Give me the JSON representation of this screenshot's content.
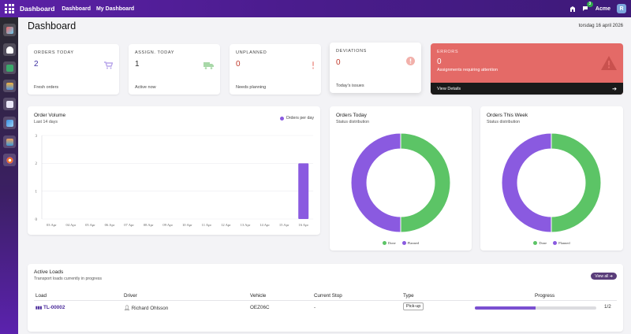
{
  "topbar": {
    "brand": "Dashboard",
    "nav": [
      "Dashboard",
      "My Dashboard"
    ],
    "company": "Acme",
    "chat_badge": "3",
    "avatar_initial": "R"
  },
  "sidebar": {
    "apps": [
      "app-1",
      "app-2",
      "app-3",
      "app-4",
      "app-5",
      "app-6",
      "app-7",
      "app-8"
    ]
  },
  "page": {
    "title": "Dashboard",
    "date": "torsdag 16 april 2026"
  },
  "kpis": [
    {
      "label": "ORDERS TODAY",
      "value": "2",
      "sub": "Fresh orders",
      "icon": "cart-icon",
      "color": "#3b2fa0"
    },
    {
      "label": "ASSIGN. TODAY",
      "value": "1",
      "sub": "Active now",
      "icon": "truck-icon",
      "color": "#333333"
    },
    {
      "label": "UNPLANNED",
      "value": "0",
      "sub": "Needs planning",
      "icon": "exclamation-icon",
      "color": "#c0392b"
    },
    {
      "label": "DEVIATIONS",
      "value": "0",
      "sub": "Today's issues",
      "icon": "alert-circle-icon",
      "color": "#c0392b"
    }
  ],
  "errors": {
    "label": "ERRORS",
    "value": "0",
    "sub": "Assignments requiring attention",
    "link": "View Details"
  },
  "order_volume": {
    "title": "Order Volume",
    "subtitle": "Last 14 days",
    "legend": "Orders per day"
  },
  "orders_today": {
    "title": "Orders Today",
    "subtitle": "Status distribution",
    "legend": [
      "Done",
      "Planned"
    ]
  },
  "orders_week": {
    "title": "Orders This Week",
    "subtitle": "Status distribution",
    "legend": [
      "Done",
      "Planned"
    ]
  },
  "colors": {
    "accent": "#7a4fd0",
    "done": "#5cc466",
    "planned": "#8a5ae0",
    "error": "#e46a67"
  },
  "chart_data": [
    {
      "type": "bar",
      "title": "Order Volume",
      "subtitle": "Last 14 days",
      "categories": [
        "03 Apr",
        "04 Apr",
        "05 Apr",
        "06 Apr",
        "07 Apr",
        "08 Apr",
        "09 Apr",
        "10 Apr",
        "11 Apr",
        "12 Apr",
        "13 Apr",
        "14 Apr",
        "15 Apr",
        "16 Apr"
      ],
      "series": [
        {
          "name": "Orders per day",
          "values": [
            0,
            0,
            0,
            0,
            0,
            0,
            0,
            0,
            0,
            0,
            0,
            0,
            0,
            2
          ]
        }
      ],
      "yticks": [
        "0",
        "1",
        "2",
        "3"
      ],
      "ylim": [
        0,
        3
      ],
      "grid": true,
      "legend_position": "top-right"
    },
    {
      "type": "pie",
      "title": "Orders Today",
      "categories": [
        "Done",
        "Planned"
      ],
      "values": [
        1,
        1
      ]
    },
    {
      "type": "pie",
      "title": "Orders This Week",
      "categories": [
        "Done",
        "Planned"
      ],
      "values": [
        1,
        1
      ]
    }
  ],
  "active_loads": {
    "title": "Active Loads",
    "subtitle": "Transport loads currently in progress",
    "view_all": "View all",
    "columns": [
      "Load",
      "Driver",
      "Vehicle",
      "Current Stop",
      "Type",
      "Progress"
    ],
    "rows": [
      {
        "load": "TL-00002",
        "driver": "Richard Ohlsson",
        "vehicle": "OEZ06C",
        "stop": "-",
        "type": "Pick-up",
        "progress_text": "1/2",
        "progress": 0.5
      }
    ]
  }
}
